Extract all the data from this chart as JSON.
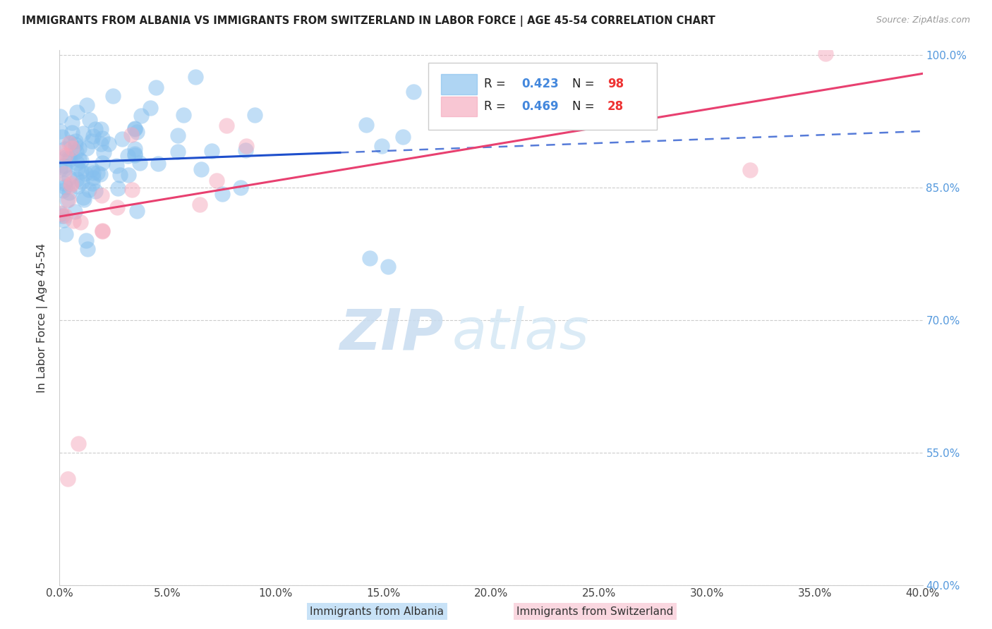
{
  "title": "IMMIGRANTS FROM ALBANIA VS IMMIGRANTS FROM SWITZERLAND IN LABOR FORCE | AGE 45-54 CORRELATION CHART",
  "source": "Source: ZipAtlas.com",
  "ylabel": "In Labor Force | Age 45-54",
  "albania_color": "#85BFEE",
  "switzerland_color": "#F5A8BC",
  "albania_line_color": "#1E4FCC",
  "switzerland_line_color": "#E84070",
  "watermark_zip": "ZIP",
  "watermark_atlas": "atlas",
  "xlim": [
    0.0,
    0.4
  ],
  "ylim": [
    0.4,
    1.005
  ],
  "yticks": [
    0.4,
    0.55,
    0.7,
    0.85,
    1.0
  ],
  "xticks": [
    0.0,
    0.05,
    0.1,
    0.15,
    0.2,
    0.25,
    0.3,
    0.35,
    0.4
  ],
  "albania_R": "0.423",
  "albania_N": "98",
  "switzerland_R": "0.469",
  "switzerland_N": "28",
  "legend_R_color": "#4488DD",
  "legend_N_color": "#EE3333",
  "legend_text_color": "#222222"
}
